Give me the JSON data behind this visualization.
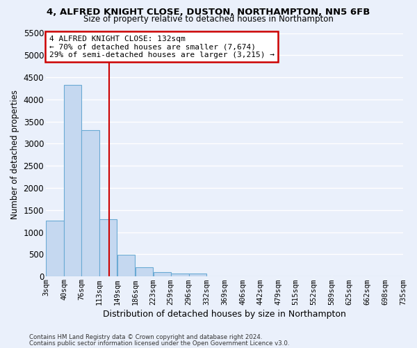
{
  "title1": "4, ALFRED KNIGHT CLOSE, DUSTON, NORTHAMPTON, NN5 6FB",
  "title2": "Size of property relative to detached houses in Northampton",
  "xlabel": "Distribution of detached houses by size in Northampton",
  "ylabel": "Number of detached properties",
  "footer1": "Contains HM Land Registry data © Crown copyright and database right 2024.",
  "footer2": "Contains public sector information licensed under the Open Government Licence v3.0.",
  "annotation_line1": "4 ALFRED KNIGHT CLOSE: 132sqm",
  "annotation_line2": "← 70% of detached houses are smaller (7,674)",
  "annotation_line3": "29% of semi-detached houses are larger (3,215) →",
  "bar_left_edges": [
    3,
    40,
    76,
    113,
    149,
    186,
    223,
    259,
    296,
    332,
    369,
    406,
    442,
    479,
    515,
    552,
    589,
    625,
    662,
    698
  ],
  "bar_widths": [
    37,
    36,
    37,
    36,
    37,
    37,
    36,
    37,
    36,
    37,
    37,
    36,
    37,
    36,
    37,
    37,
    36,
    37,
    36,
    37
  ],
  "bar_heights": [
    1270,
    4330,
    3300,
    1290,
    490,
    215,
    95,
    65,
    60,
    0,
    0,
    0,
    0,
    0,
    0,
    0,
    0,
    0,
    0,
    0
  ],
  "bar_color": "#c5d8f0",
  "bar_edge_color": "#6aaad4",
  "x_tick_labels": [
    "3sqm",
    "40sqm",
    "76sqm",
    "113sqm",
    "149sqm",
    "186sqm",
    "223sqm",
    "259sqm",
    "296sqm",
    "332sqm",
    "369sqm",
    "406sqm",
    "442sqm",
    "479sqm",
    "515sqm",
    "552sqm",
    "589sqm",
    "625sqm",
    "662sqm",
    "698sqm",
    "735sqm"
  ],
  "x_tick_positions": [
    3,
    40,
    76,
    113,
    149,
    186,
    223,
    259,
    296,
    332,
    369,
    406,
    442,
    479,
    515,
    552,
    589,
    625,
    662,
    698,
    735
  ],
  "yticks": [
    0,
    500,
    1000,
    1500,
    2000,
    2500,
    3000,
    3500,
    4000,
    4500,
    5000,
    5500
  ],
  "ylim": [
    0,
    5500
  ],
  "xlim": [
    3,
    735
  ],
  "vline_x": 132,
  "vline_color": "#cc0000",
  "bg_color": "#eaf0fb",
  "plot_bg_color": "#eaf0fb",
  "grid_color": "#ffffff",
  "annotation_box_color": "#cc0000",
  "annotation_box_fill": "#ffffff"
}
